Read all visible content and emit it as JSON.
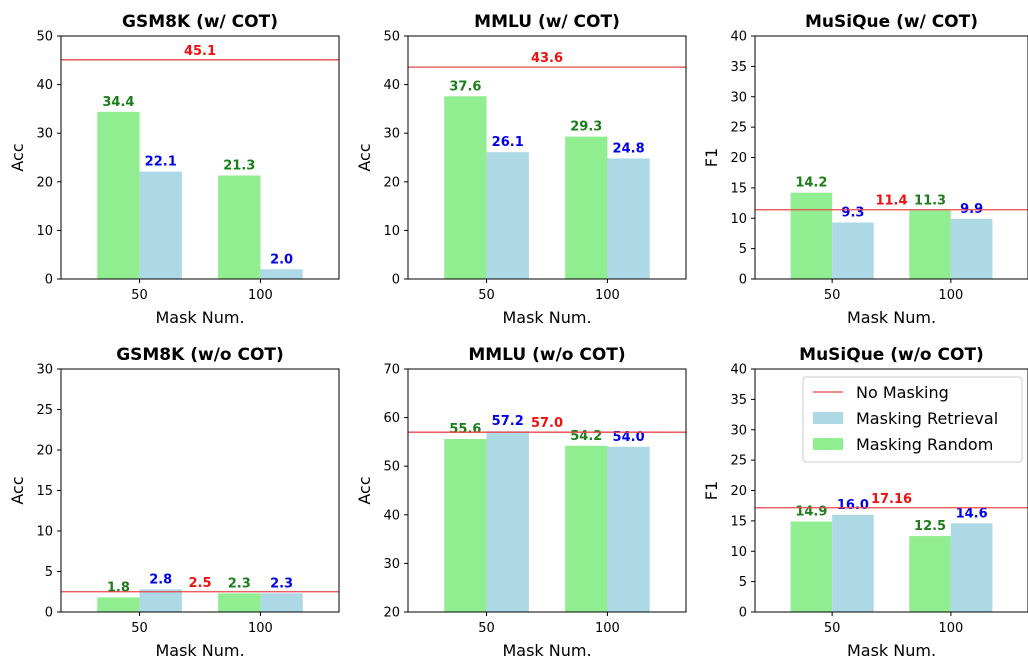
{
  "colors": {
    "random": "#90ee90",
    "retrieval": "#add8e6",
    "baseline_line": "#e8474b",
    "random_label": "#1a7f1a",
    "retrieval_label": "#0000ee",
    "baseline_label": "#ee1111"
  },
  "legend": {
    "placement": "upper-right of MuSiQue (w/o COT) panel",
    "items": [
      {
        "key": "baseline",
        "label": "No Masking"
      },
      {
        "key": "retrieval",
        "label": "Masking Retrieval"
      },
      {
        "key": "random",
        "label": "Masking Random"
      }
    ]
  },
  "chart_data": [
    {
      "type": "bar",
      "title": "GSM8K (w/ COT)",
      "xlabel": "Mask Num.",
      "ylabel": "Acc",
      "categories": [
        "50",
        "100"
      ],
      "series": [
        {
          "name": "Masking Random",
          "key": "random",
          "values": [
            34.4,
            21.3
          ],
          "labels": [
            "34.4",
            "21.3"
          ]
        },
        {
          "name": "Masking Retrieval",
          "key": "retrieval",
          "values": [
            22.1,
            2.0
          ],
          "labels": [
            "22.1",
            "2.0"
          ]
        }
      ],
      "baseline": {
        "name": "No Masking",
        "value": 45.1,
        "label": "45.1"
      },
      "ylim": [
        0,
        50
      ],
      "yticks": [
        "0",
        "10",
        "20",
        "30",
        "40",
        "50"
      ],
      "grid": false
    },
    {
      "type": "bar",
      "title": "MMLU (w/ COT)",
      "xlabel": "Mask Num.",
      "ylabel": "Acc",
      "categories": [
        "50",
        "100"
      ],
      "series": [
        {
          "name": "Masking Random",
          "key": "random",
          "values": [
            37.6,
            29.3
          ],
          "labels": [
            "37.6",
            "29.3"
          ]
        },
        {
          "name": "Masking Retrieval",
          "key": "retrieval",
          "values": [
            26.1,
            24.8
          ],
          "labels": [
            "26.1",
            "24.8"
          ]
        }
      ],
      "baseline": {
        "name": "No Masking",
        "value": 43.6,
        "label": "43.6"
      },
      "ylim": [
        0,
        50
      ],
      "yticks": [
        "0",
        "10",
        "20",
        "30",
        "40",
        "50"
      ],
      "grid": false
    },
    {
      "type": "bar",
      "title": "MuSiQue (w/ COT)",
      "xlabel": "Mask Num.",
      "ylabel": "F1",
      "categories": [
        "50",
        "100"
      ],
      "series": [
        {
          "name": "Masking Random",
          "key": "random",
          "values": [
            14.2,
            11.3
          ],
          "labels": [
            "14.2",
            "11.3"
          ]
        },
        {
          "name": "Masking Retrieval",
          "key": "retrieval",
          "values": [
            9.3,
            9.9
          ],
          "labels": [
            "9.3",
            "9.9"
          ]
        }
      ],
      "baseline": {
        "name": "No Masking",
        "value": 11.4,
        "label": "11.4"
      },
      "ylim": [
        0,
        40
      ],
      "yticks": [
        "0",
        "5",
        "10",
        "15",
        "20",
        "25",
        "30",
        "35",
        "40"
      ],
      "grid": false
    },
    {
      "type": "bar",
      "title": "GSM8K (w/o COT)",
      "xlabel": "Mask Num.",
      "ylabel": "Acc",
      "categories": [
        "50",
        "100"
      ],
      "series": [
        {
          "name": "Masking Random",
          "key": "random",
          "values": [
            1.8,
            2.3
          ],
          "labels": [
            "1.8",
            "2.3"
          ]
        },
        {
          "name": "Masking Retrieval",
          "key": "retrieval",
          "values": [
            2.8,
            2.3
          ],
          "labels": [
            "2.8",
            "2.3"
          ]
        }
      ],
      "baseline": {
        "name": "No Masking",
        "value": 2.5,
        "label": "2.5"
      },
      "ylim": [
        0,
        30
      ],
      "yticks": [
        "0",
        "5",
        "10",
        "15",
        "20",
        "25",
        "30"
      ],
      "grid": false
    },
    {
      "type": "bar",
      "title": "MMLU (w/o COT)",
      "xlabel": "Mask Num.",
      "ylabel": "Acc",
      "categories": [
        "50",
        "100"
      ],
      "series": [
        {
          "name": "Masking Random",
          "key": "random",
          "values": [
            55.6,
            54.2
          ],
          "labels": [
            "55.6",
            "54.2"
          ]
        },
        {
          "name": "Masking Retrieval",
          "key": "retrieval",
          "values": [
            57.2,
            54.0
          ],
          "labels": [
            "57.2",
            "54.0"
          ]
        }
      ],
      "baseline": {
        "name": "No Masking",
        "value": 57.0,
        "label": "57.0"
      },
      "ylim": [
        20,
        70
      ],
      "yticks": [
        "20",
        "30",
        "40",
        "50",
        "60",
        "70"
      ],
      "grid": false
    },
    {
      "type": "bar",
      "title": "MuSiQue (w/o COT)",
      "xlabel": "Mask Num.",
      "ylabel": "F1",
      "categories": [
        "50",
        "100"
      ],
      "series": [
        {
          "name": "Masking Random",
          "key": "random",
          "values": [
            14.9,
            12.5
          ],
          "labels": [
            "14.9",
            "12.5"
          ]
        },
        {
          "name": "Masking Retrieval",
          "key": "retrieval",
          "values": [
            16.0,
            14.6
          ],
          "labels": [
            "16.0",
            "14.6"
          ]
        }
      ],
      "baseline": {
        "name": "No Masking",
        "value": 17.16,
        "label": "17.16"
      },
      "ylim": [
        0,
        40
      ],
      "yticks": [
        "0",
        "5",
        "10",
        "15",
        "20",
        "25",
        "30",
        "35",
        "40"
      ],
      "grid": false,
      "has_legend": true
    }
  ]
}
